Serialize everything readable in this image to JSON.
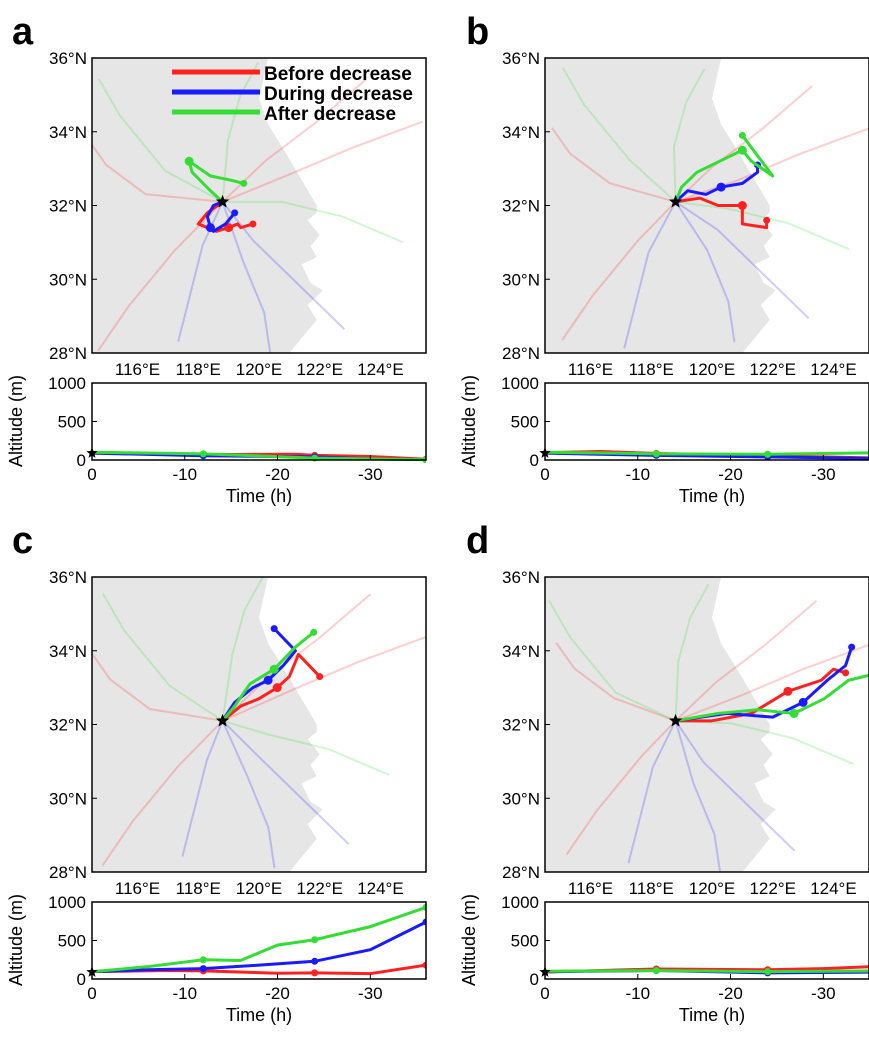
{
  "legend": [
    {
      "label": "Before decrease",
      "color": "#ff2020"
    },
    {
      "label": "During decrease",
      "color": "#1a1aff"
    },
    {
      "label": "After decrease",
      "color": "#33dd33"
    }
  ],
  "colors": {
    "before": "#ff2020",
    "during": "#1a1aff",
    "after": "#33dd33",
    "land": "#e6e6e6"
  },
  "chart_data": [
    {
      "panel": "a",
      "type": "line",
      "map": {
        "xticks": [
          "116°E",
          "118°E",
          "120°E",
          "122°E",
          "124°E"
        ],
        "yticks": [
          "28°N",
          "30°N",
          "32°N",
          "34°N",
          "36°N"
        ],
        "lon_range": [
          114.5,
          125.5
        ],
        "lat_range": [
          28,
          36
        ],
        "receptor": [
          118.8,
          32.1
        ],
        "series": [
          {
            "name": "Before decrease",
            "points": [
              [
                118.8,
                32.1
              ],
              [
                118.3,
                31.8
              ],
              [
                118.0,
                31.5
              ],
              [
                118.6,
                31.3
              ],
              [
                119.0,
                31.4
              ],
              [
                119.3,
                31.5
              ],
              [
                119.4,
                31.4
              ],
              [
                119.8,
                31.5
              ]
            ]
          },
          {
            "name": "During decrease",
            "points": [
              [
                118.8,
                32.1
              ],
              [
                118.5,
                32.0
              ],
              [
                118.3,
                31.7
              ],
              [
                118.4,
                31.4
              ],
              [
                118.5,
                31.3
              ],
              [
                118.9,
                31.5
              ],
              [
                119.2,
                31.8
              ]
            ]
          },
          {
            "name": "After decrease",
            "points": [
              [
                118.8,
                32.1
              ],
              [
                118.4,
                32.4
              ],
              [
                117.8,
                32.9
              ],
              [
                117.7,
                33.2
              ],
              [
                118.4,
                32.8
              ],
              [
                119.0,
                32.7
              ],
              [
                119.5,
                32.6
              ]
            ]
          }
        ]
      },
      "altitude": {
        "ylabel": "Altitude (m)",
        "xlabel": "Time (h)",
        "xticks": [
          "0",
          "-10",
          "-20",
          "-30"
        ],
        "yticks": [
          "0",
          "500",
          "1000"
        ],
        "ylim": [
          0,
          1000
        ],
        "xlim": [
          0,
          -36
        ],
        "series": [
          {
            "name": "Before decrease",
            "values": [
              [
                0,
                95
              ],
              [
                -12,
                70
              ],
              [
                -22,
                75
              ],
              [
                -24,
                60
              ],
              [
                -30,
                45
              ],
              [
                -36,
                10
              ]
            ]
          },
          {
            "name": "During decrease",
            "values": [
              [
                0,
                90
              ],
              [
                -12,
                55
              ],
              [
                -24,
                40
              ],
              [
                -30,
                15
              ],
              [
                -36,
                5
              ]
            ]
          },
          {
            "name": "After decrease",
            "values": [
              [
                0,
                100
              ],
              [
                -12,
                80
              ],
              [
                -24,
                25
              ],
              [
                -36,
                5
              ]
            ]
          }
        ]
      }
    },
    {
      "panel": "b",
      "type": "line",
      "map": {
        "xticks": [
          "116°E",
          "118°E",
          "120°E",
          "122°E",
          "124°E"
        ],
        "yticks": [
          "28°N",
          "30°N",
          "32°N",
          "34°N",
          "36°N"
        ],
        "lon_range": [
          114.5,
          125.5
        ],
        "lat_range": [
          28,
          36
        ],
        "receptor": [
          118.8,
          32.1
        ],
        "series": [
          {
            "name": "Before decrease",
            "points": [
              [
                118.8,
                32.1
              ],
              [
                119.6,
                32.2
              ],
              [
                120.2,
                32.0
              ],
              [
                121.0,
                32.0
              ],
              [
                121.0,
                31.5
              ],
              [
                121.8,
                31.4
              ],
              [
                121.8,
                31.6
              ]
            ]
          },
          {
            "name": "During decrease",
            "points": [
              [
                118.8,
                32.1
              ],
              [
                119.2,
                32.4
              ],
              [
                119.8,
                32.3
              ],
              [
                120.3,
                32.5
              ],
              [
                121.0,
                32.6
              ],
              [
                121.5,
                32.9
              ],
              [
                121.5,
                33.1
              ]
            ]
          },
          {
            "name": "After decrease",
            "points": [
              [
                118.8,
                32.1
              ],
              [
                119.0,
                32.5
              ],
              [
                119.5,
                32.9
              ],
              [
                120.5,
                33.3
              ],
              [
                121.0,
                33.5
              ],
              [
                121.3,
                33.2
              ],
              [
                122.0,
                32.8
              ],
              [
                121.0,
                33.9
              ]
            ]
          }
        ]
      },
      "altitude": {
        "ylabel": "Altitude (m)",
        "xlabel": "Time (h)",
        "xticks": [
          "0",
          "-10",
          "-20",
          "-30"
        ],
        "yticks": [
          "0",
          "500",
          "1000"
        ],
        "ylim": [
          0,
          1000
        ],
        "xlim": [
          0,
          -36
        ],
        "series": [
          {
            "name": "Before decrease",
            "values": [
              [
                0,
                95
              ],
              [
                -6,
                110
              ],
              [
                -12,
                85
              ],
              [
                -24,
                55
              ],
              [
                -36,
                25
              ]
            ]
          },
          {
            "name": "During decrease",
            "values": [
              [
                0,
                90
              ],
              [
                -12,
                60
              ],
              [
                -24,
                40
              ],
              [
                -36,
                20
              ]
            ]
          },
          {
            "name": "After decrease",
            "values": [
              [
                0,
                100
              ],
              [
                -12,
                80
              ],
              [
                -24,
                75
              ],
              [
                -36,
                95
              ]
            ]
          }
        ]
      }
    },
    {
      "panel": "c",
      "type": "line",
      "map": {
        "xticks": [
          "116°E",
          "118°E",
          "120°E",
          "122°E",
          "124°E"
        ],
        "yticks": [
          "28°N",
          "30°N",
          "32°N",
          "34°N",
          "36°N"
        ],
        "lon_range": [
          114.5,
          125.5
        ],
        "lat_range": [
          28,
          36
        ],
        "receptor": [
          118.8,
          32.1
        ],
        "series": [
          {
            "name": "Before decrease",
            "points": [
              [
                118.8,
                32.1
              ],
              [
                119.4,
                32.5
              ],
              [
                120.0,
                32.7
              ],
              [
                120.6,
                33.0
              ],
              [
                121.0,
                33.3
              ],
              [
                121.3,
                33.9
              ],
              [
                122.0,
                33.3
              ]
            ]
          },
          {
            "name": "During decrease",
            "points": [
              [
                118.8,
                32.1
              ],
              [
                119.2,
                32.6
              ],
              [
                119.8,
                33.0
              ],
              [
                120.3,
                33.2
              ],
              [
                120.8,
                33.6
              ],
              [
                121.2,
                34.0
              ],
              [
                120.5,
                34.6
              ]
            ]
          },
          {
            "name": "After decrease",
            "points": [
              [
                118.8,
                32.1
              ],
              [
                119.2,
                32.5
              ],
              [
                119.7,
                33.1
              ],
              [
                120.5,
                33.5
              ],
              [
                121.2,
                34.1
              ],
              [
                121.8,
                34.5
              ]
            ]
          }
        ]
      },
      "altitude": {
        "ylabel": "Altitude (m)",
        "xlabel": "Time (h)",
        "xticks": [
          "0",
          "-10",
          "-20",
          "-30"
        ],
        "yticks": [
          "0",
          "500",
          "1000"
        ],
        "ylim": [
          0,
          1000
        ],
        "xlim": [
          0,
          -36
        ],
        "series": [
          {
            "name": "Before decrease",
            "values": [
              [
                0,
                95
              ],
              [
                -8,
                110
              ],
              [
                -12,
                105
              ],
              [
                -20,
                75
              ],
              [
                -24,
                80
              ],
              [
                -30,
                70
              ],
              [
                -36,
                180
              ]
            ]
          },
          {
            "name": "During decrease",
            "values": [
              [
                0,
                95
              ],
              [
                -6,
                120
              ],
              [
                -12,
                135
              ],
              [
                -18,
                180
              ],
              [
                -24,
                230
              ],
              [
                -30,
                380
              ],
              [
                -36,
                740
              ]
            ]
          },
          {
            "name": "After decrease",
            "values": [
              [
                0,
                95
              ],
              [
                -6,
                160
              ],
              [
                -12,
                250
              ],
              [
                -16,
                240
              ],
              [
                -20,
                440
              ],
              [
                -24,
                510
              ],
              [
                -30,
                680
              ],
              [
                -36,
                930
              ]
            ]
          }
        ]
      }
    },
    {
      "panel": "d",
      "type": "line",
      "map": {
        "xticks": [
          "116°E",
          "118°E",
          "120°E",
          "122°E",
          "124°E"
        ],
        "yticks": [
          "28°N",
          "30°N",
          "32°N",
          "34°N",
          "36°N"
        ],
        "lon_range": [
          114.5,
          125.5
        ],
        "lat_range": [
          28,
          36
        ],
        "receptor": [
          118.8,
          32.1
        ],
        "series": [
          {
            "name": "Before decrease",
            "points": [
              [
                118.8,
                32.1
              ],
              [
                120.0,
                32.1
              ],
              [
                121.3,
                32.3
              ],
              [
                122.5,
                32.9
              ],
              [
                123.6,
                33.2
              ],
              [
                124.0,
                33.5
              ],
              [
                124.4,
                33.4
              ]
            ]
          },
          {
            "name": "During decrease",
            "points": [
              [
                118.8,
                32.1
              ],
              [
                120.5,
                32.3
              ],
              [
                122.0,
                32.2
              ],
              [
                123.0,
                32.6
              ],
              [
                123.8,
                33.2
              ],
              [
                124.4,
                33.6
              ],
              [
                124.6,
                34.1
              ]
            ]
          },
          {
            "name": "After decrease",
            "points": [
              [
                118.8,
                32.1
              ],
              [
                120.2,
                32.3
              ],
              [
                121.5,
                32.4
              ],
              [
                122.7,
                32.3
              ],
              [
                123.7,
                32.7
              ],
              [
                124.5,
                33.2
              ],
              [
                125.5,
                33.4
              ]
            ]
          }
        ]
      },
      "altitude": {
        "ylabel": "Altitude (m)",
        "xlabel": "Time (h)",
        "xticks": [
          "0",
          "-10",
          "-20",
          "-30"
        ],
        "yticks": [
          "0",
          "500",
          "1000"
        ],
        "ylim": [
          0,
          1000
        ],
        "xlim": [
          0,
          -36
        ],
        "series": [
          {
            "name": "Before decrease",
            "values": [
              [
                0,
                90
              ],
              [
                -12,
                130
              ],
              [
                -24,
                120
              ],
              [
                -30,
                135
              ],
              [
                -36,
                165
              ]
            ]
          },
          {
            "name": "During decrease",
            "values": [
              [
                0,
                95
              ],
              [
                -12,
                110
              ],
              [
                -24,
                80
              ],
              [
                -36,
                90
              ]
            ]
          },
          {
            "name": "After decrease",
            "values": [
              [
                0,
                100
              ],
              [
                -12,
                110
              ],
              [
                -24,
                95
              ],
              [
                -36,
                105
              ]
            ]
          }
        ]
      }
    }
  ]
}
